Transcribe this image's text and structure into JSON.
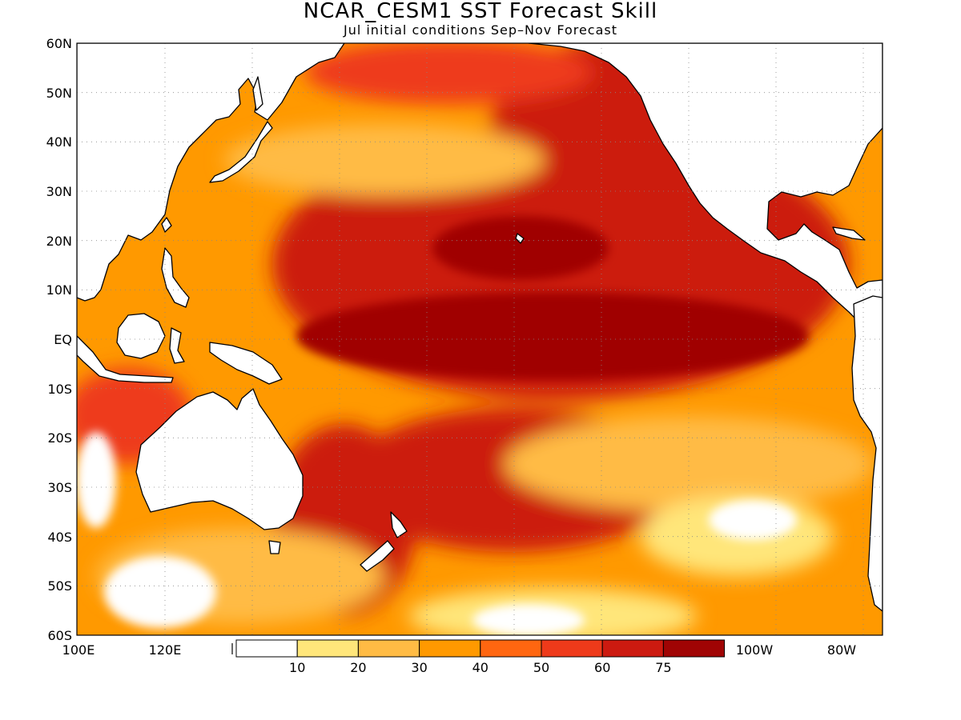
{
  "title": "NCAR_CESM1 SST Forecast Skill",
  "subtitle": "Jul initial conditions  Sep–Nov Forecast",
  "map": {
    "region": "Pacific Ocean",
    "lat_range": [
      -60,
      60
    ],
    "lon_range": [
      100,
      285
    ],
    "lat_ticks": [
      "60N",
      "50N",
      "40N",
      "30N",
      "20N",
      "10N",
      "EQ",
      "10S",
      "20S",
      "30S",
      "40S",
      "50S",
      "60S"
    ],
    "lon_ticks_left": [
      "100E",
      "120E"
    ],
    "lon_ticks_right": [
      "100W",
      "80W"
    ],
    "gridlines": "dotted",
    "land_color": "#ffffff",
    "coastline_color": "#000000"
  },
  "colorbar": {
    "labels": [
      "10",
      "20",
      "30",
      "40",
      "50",
      "60",
      "75"
    ],
    "colors": [
      "#ffffff",
      "#ffe67a",
      "#ffbb44",
      "#ff9900",
      "#ff6610",
      "#ee3a1a",
      "#cc1a10",
      "#a00404"
    ]
  }
}
